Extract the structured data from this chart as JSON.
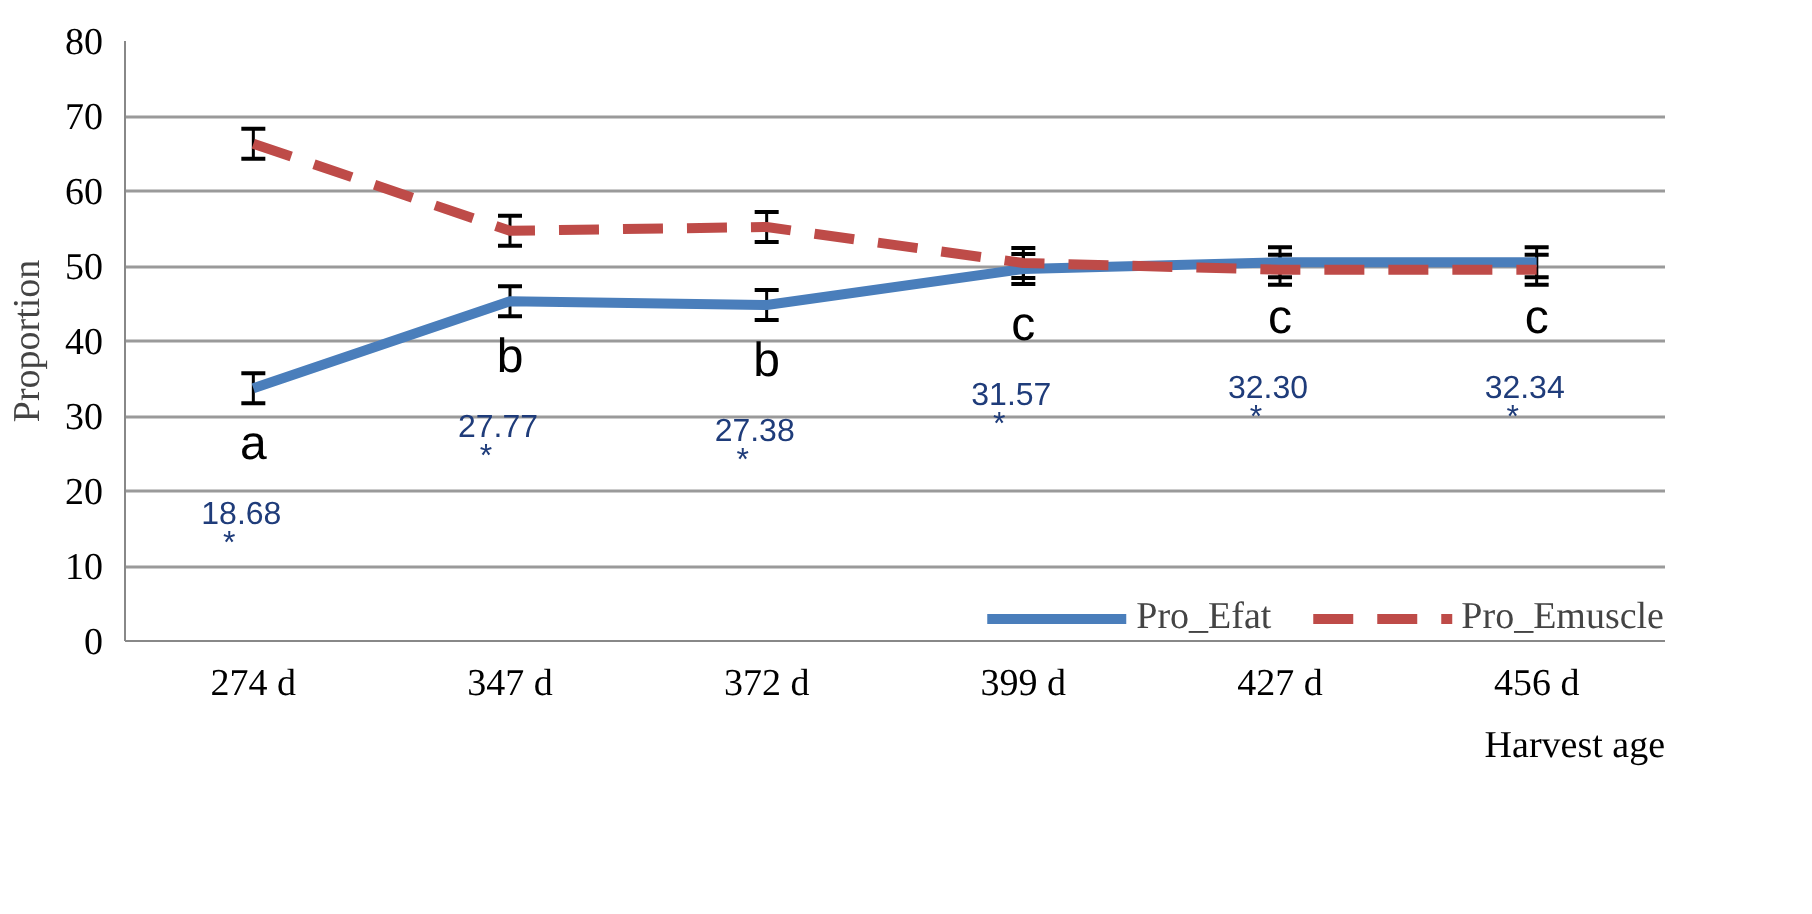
{
  "chart_data": {
    "type": "line",
    "xlabel": "Harvest age",
    "ylabel": "Proportion",
    "categories": [
      "274 d",
      "347 d",
      "372 d",
      "399 d",
      "427 d",
      "456 d"
    ],
    "ylim": [
      0,
      80
    ],
    "yticks": [
      0,
      10,
      20,
      30,
      40,
      50,
      60,
      70,
      80
    ],
    "grid": "y",
    "legend": "bottom",
    "marker": "none",
    "series": [
      {
        "name": "Pro_Efat",
        "color": "#4a7ebb",
        "line_style": "solid",
        "values": [
          33.7,
          45.3,
          44.8,
          49.6,
          50.5,
          50.5
        ],
        "errors": [
          2,
          2,
          2,
          2,
          2,
          2
        ]
      },
      {
        "name": "Pro_Emuscle",
        "color": "#be4b48",
        "line_style": "dashed",
        "values": [
          66.3,
          54.7,
          55.2,
          50.4,
          49.5,
          49.5
        ],
        "errors": [
          2,
          2,
          2,
          2,
          2,
          2
        ]
      }
    ],
    "annotations": [
      "a",
      "b",
      "b",
      "c",
      "c",
      "c",
      "18.68",
      "27.77",
      "27.38",
      "31.57",
      "32.30",
      "32.34",
      "*",
      "*",
      "*",
      "*",
      "*",
      "*"
    ]
  }
}
